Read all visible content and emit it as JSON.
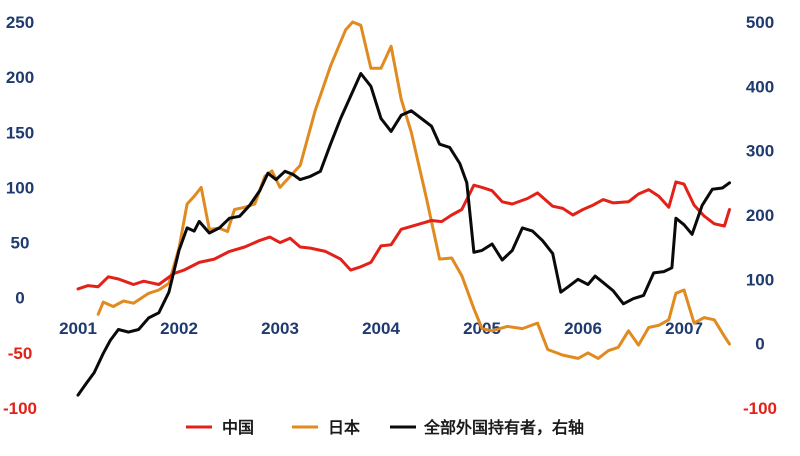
{
  "chart_data": {
    "type": "line",
    "title": "",
    "xlabel": "",
    "x_ticks": [
      "2001",
      "2002",
      "2003",
      "2004",
      "2005",
      "2006",
      "2007"
    ],
    "left_axis": {
      "ylim": [
        -100,
        250
      ],
      "ticks": [
        -100,
        -50,
        0,
        50,
        100,
        150,
        200,
        250
      ],
      "negative_tick_color": "#e32119",
      "tick_color": "#1f3a6e"
    },
    "right_axis": {
      "ylim": [
        -100,
        500
      ],
      "ticks": [
        -100,
        0,
        100,
        200,
        300,
        400,
        500
      ],
      "negative_tick_color": "#e32119",
      "tick_color": "#1f3a6e"
    },
    "grid": false,
    "legend_position": "bottom",
    "series": [
      {
        "name": "中国",
        "axis": "left",
        "color": "#e32119",
        "points": [
          [
            2001.0,
            8
          ],
          [
            2001.1,
            11
          ],
          [
            2001.2,
            10
          ],
          [
            2001.3,
            19
          ],
          [
            2001.4,
            17
          ],
          [
            2001.55,
            12
          ],
          [
            2001.65,
            15
          ],
          [
            2001.8,
            12
          ],
          [
            2001.95,
            22
          ],
          [
            2002.05,
            25
          ],
          [
            2002.2,
            32
          ],
          [
            2002.35,
            35
          ],
          [
            2002.5,
            42
          ],
          [
            2002.65,
            46
          ],
          [
            2002.8,
            52
          ],
          [
            2002.9,
            55
          ],
          [
            2003.0,
            50
          ],
          [
            2003.1,
            54
          ],
          [
            2003.2,
            46
          ],
          [
            2003.3,
            45
          ],
          [
            2003.45,
            42
          ],
          [
            2003.6,
            35
          ],
          [
            2003.7,
            25
          ],
          [
            2003.8,
            28
          ],
          [
            2003.9,
            32
          ],
          [
            2004.0,
            47
          ],
          [
            2004.1,
            48
          ],
          [
            2004.2,
            62
          ],
          [
            2004.35,
            66
          ],
          [
            2004.5,
            70
          ],
          [
            2004.6,
            69
          ],
          [
            2004.7,
            75
          ],
          [
            2004.8,
            80
          ],
          [
            2004.92,
            102
          ],
          [
            2005.0,
            100
          ],
          [
            2005.1,
            97
          ],
          [
            2005.2,
            87
          ],
          [
            2005.3,
            85
          ],
          [
            2005.45,
            90
          ],
          [
            2005.55,
            95
          ],
          [
            2005.7,
            83
          ],
          [
            2005.8,
            81
          ],
          [
            2005.9,
            75
          ],
          [
            2006.0,
            80
          ],
          [
            2006.1,
            84
          ],
          [
            2006.2,
            89
          ],
          [
            2006.3,
            86
          ],
          [
            2006.45,
            87
          ],
          [
            2006.55,
            94
          ],
          [
            2006.65,
            98
          ],
          [
            2006.75,
            92
          ],
          [
            2006.85,
            82
          ],
          [
            2006.92,
            105
          ],
          [
            2007.0,
            103
          ],
          [
            2007.1,
            84
          ],
          [
            2007.2,
            74
          ],
          [
            2007.3,
            67
          ],
          [
            2007.4,
            65
          ],
          [
            2007.45,
            80
          ]
        ]
      },
      {
        "name": "日本",
        "axis": "left",
        "color": "#e08a20",
        "points": [
          [
            2001.2,
            -15
          ],
          [
            2001.25,
            -4
          ],
          [
            2001.35,
            -8
          ],
          [
            2001.45,
            -3
          ],
          [
            2001.55,
            -5
          ],
          [
            2001.7,
            4
          ],
          [
            2001.8,
            7
          ],
          [
            2001.9,
            13
          ],
          [
            2002.0,
            45
          ],
          [
            2002.08,
            85
          ],
          [
            2002.15,
            92
          ],
          [
            2002.22,
            100
          ],
          [
            2002.3,
            62
          ],
          [
            2002.4,
            63
          ],
          [
            2002.48,
            60
          ],
          [
            2002.55,
            80
          ],
          [
            2002.65,
            82
          ],
          [
            2002.75,
            85
          ],
          [
            2002.85,
            110
          ],
          [
            2002.92,
            115
          ],
          [
            2003.0,
            100
          ],
          [
            2003.1,
            110
          ],
          [
            2003.2,
            120
          ],
          [
            2003.35,
            170
          ],
          [
            2003.5,
            210
          ],
          [
            2003.65,
            243
          ],
          [
            2003.72,
            250
          ],
          [
            2003.8,
            247
          ],
          [
            2003.9,
            208
          ],
          [
            2004.0,
            208
          ],
          [
            2004.1,
            228
          ],
          [
            2004.2,
            180
          ],
          [
            2004.3,
            150
          ],
          [
            2004.45,
            90
          ],
          [
            2004.58,
            35
          ],
          [
            2004.7,
            36
          ],
          [
            2004.8,
            20
          ],
          [
            2004.92,
            -10
          ],
          [
            2005.0,
            -28
          ],
          [
            2005.1,
            -30
          ],
          [
            2005.25,
            -26
          ],
          [
            2005.4,
            -28
          ],
          [
            2005.55,
            -23
          ],
          [
            2005.65,
            -47
          ],
          [
            2005.8,
            -52
          ],
          [
            2005.95,
            -55
          ],
          [
            2006.05,
            -50
          ],
          [
            2006.15,
            -55
          ],
          [
            2006.25,
            -48
          ],
          [
            2006.35,
            -45
          ],
          [
            2006.45,
            -30
          ],
          [
            2006.55,
            -43
          ],
          [
            2006.65,
            -27
          ],
          [
            2006.75,
            -25
          ],
          [
            2006.85,
            -20
          ],
          [
            2006.92,
            4
          ],
          [
            2007.0,
            7
          ],
          [
            2007.1,
            -23
          ],
          [
            2007.2,
            -18
          ],
          [
            2007.3,
            -20
          ],
          [
            2007.4,
            -35
          ],
          [
            2007.45,
            -42
          ]
        ]
      },
      {
        "name": "全部外国持有者，右轴",
        "axis": "right",
        "color": "#0a0a0a",
        "points": [
          [
            2001.0,
            -80
          ],
          [
            2001.08,
            -62
          ],
          [
            2001.16,
            -45
          ],
          [
            2001.25,
            -15
          ],
          [
            2001.32,
            5
          ],
          [
            2001.4,
            22
          ],
          [
            2001.5,
            18
          ],
          [
            2001.6,
            22
          ],
          [
            2001.7,
            40
          ],
          [
            2001.8,
            48
          ],
          [
            2001.9,
            80
          ],
          [
            2002.0,
            145
          ],
          [
            2002.08,
            180
          ],
          [
            2002.15,
            175
          ],
          [
            2002.2,
            190
          ],
          [
            2002.3,
            172
          ],
          [
            2002.4,
            180
          ],
          [
            2002.5,
            195
          ],
          [
            2002.6,
            198
          ],
          [
            2002.7,
            215
          ],
          [
            2002.8,
            238
          ],
          [
            2002.88,
            265
          ],
          [
            2002.96,
            255
          ],
          [
            2003.05,
            268
          ],
          [
            2003.13,
            263
          ],
          [
            2003.2,
            255
          ],
          [
            2003.3,
            260
          ],
          [
            2003.4,
            268
          ],
          [
            2003.5,
            310
          ],
          [
            2003.6,
            350
          ],
          [
            2003.7,
            385
          ],
          [
            2003.8,
            420
          ],
          [
            2003.9,
            400
          ],
          [
            2004.0,
            350
          ],
          [
            2004.1,
            330
          ],
          [
            2004.2,
            355
          ],
          [
            2004.3,
            362
          ],
          [
            2004.4,
            350
          ],
          [
            2004.5,
            338
          ],
          [
            2004.58,
            310
          ],
          [
            2004.68,
            305
          ],
          [
            2004.78,
            280
          ],
          [
            2004.85,
            250
          ],
          [
            2004.92,
            142
          ],
          [
            2005.0,
            145
          ],
          [
            2005.1,
            155
          ],
          [
            2005.2,
            130
          ],
          [
            2005.3,
            145
          ],
          [
            2005.4,
            180
          ],
          [
            2005.5,
            175
          ],
          [
            2005.6,
            160
          ],
          [
            2005.7,
            140
          ],
          [
            2005.78,
            80
          ],
          [
            2005.85,
            88
          ],
          [
            2005.95,
            100
          ],
          [
            2006.05,
            92
          ],
          [
            2006.12,
            105
          ],
          [
            2006.2,
            95
          ],
          [
            2006.3,
            82
          ],
          [
            2006.4,
            62
          ],
          [
            2006.5,
            70
          ],
          [
            2006.6,
            75
          ],
          [
            2006.7,
            110
          ],
          [
            2006.8,
            112
          ],
          [
            2006.88,
            118
          ],
          [
            2006.92,
            195
          ],
          [
            2007.0,
            185
          ],
          [
            2007.08,
            170
          ],
          [
            2007.18,
            215
          ],
          [
            2007.28,
            240
          ],
          [
            2007.38,
            242
          ],
          [
            2007.45,
            250
          ]
        ]
      }
    ]
  }
}
